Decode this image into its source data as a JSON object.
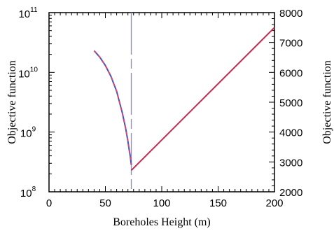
{
  "chart_data": {
    "type": "line",
    "xlabel": "Boreholes Height (m)",
    "ylabel_left": "Objective function",
    "ylabel_right": "Objective function",
    "xlim": [
      0,
      200
    ],
    "ylim_left": [
      100000000,
      100000000000
    ],
    "yscale_left": "log",
    "ylim_right": [
      2000,
      8000
    ],
    "yscale_right": "linear",
    "x_ticks": [
      0,
      50,
      100,
      150,
      200
    ],
    "y_left_ticks": [
      {
        "base": "10",
        "exp": "8",
        "value": 100000000
      },
      {
        "base": "10",
        "exp": "9",
        "value": 1000000000
      },
      {
        "base": "10",
        "exp": "10",
        "value": 10000000000
      },
      {
        "base": "10",
        "exp": "11",
        "value": 100000000000
      }
    ],
    "y_right_ticks": [
      2000,
      3000,
      4000,
      5000,
      6000,
      7000,
      8000
    ],
    "vertical_line": {
      "x": 73,
      "style": "dashed",
      "color": "#8a8ad0"
    },
    "series": [
      {
        "axis": "left",
        "color": "#3a55c8",
        "style": "solid",
        "x": [
          40,
          45,
          50,
          55,
          60,
          65,
          68,
          70,
          71,
          72,
          73
        ],
        "y": [
          23000000000,
          18000000000,
          13000000000,
          8500000000,
          4800000000,
          2100000000,
          1150000000,
          700000000,
          520000000,
          400000000,
          280000000
        ]
      },
      {
        "axis": "left",
        "color": "#d04a78",
        "style": "dashed",
        "x": [
          40,
          45,
          50,
          55,
          60,
          65,
          68,
          70,
          71,
          72,
          73
        ],
        "y": [
          23000000000,
          18000000000,
          13000000000,
          8500000000,
          4800000000,
          2100000000,
          1150000000,
          700000000,
          520000000,
          400000000,
          280000000
        ]
      },
      {
        "axis": "right",
        "color": "#c42a50",
        "style": "solid",
        "x": [
          73,
          200
        ],
        "y": [
          2720,
          7500
        ]
      }
    ]
  }
}
